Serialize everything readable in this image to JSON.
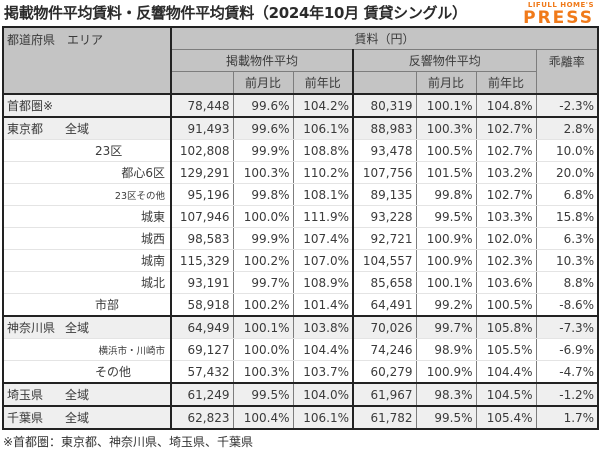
{
  "title": "掲載物件平均賃料・反響物件平均賃料（2024年10月 賃貸シングル）",
  "brand": {
    "small": "LIFULL HOME'S",
    "big": "PRESS",
    "color": "#f07a1a"
  },
  "header": {
    "area": "都道府県　エリア",
    "rent": "賃料（円）",
    "listed_avg": "掲載物件平均",
    "inquiry_avg": "反響物件平均",
    "mom": "前月比",
    "yoy": "前年比",
    "divergence": "乖離率"
  },
  "rows": [
    {
      "pref": "首都圏※",
      "area": "",
      "listed": "78,448",
      "listed_mom": "99.6%",
      "listed_yoy": "104.2%",
      "inq": "80,319",
      "inq_mom": "100.1%",
      "inq_yoy": "104.8%",
      "div": "-2.3%"
    },
    {
      "pref": "東京都",
      "area": "全域",
      "listed": "91,493",
      "listed_mom": "99.6%",
      "listed_yoy": "106.1%",
      "inq": "88,983",
      "inq_mom": "100.3%",
      "inq_yoy": "102.7%",
      "div": "2.8%"
    },
    {
      "pref": "",
      "area": "23区",
      "listed": "102,808",
      "listed_mom": "99.9%",
      "listed_yoy": "108.8%",
      "inq": "93,478",
      "inq_mom": "100.5%",
      "inq_yoy": "102.7%",
      "div": "10.0%"
    },
    {
      "pref": "",
      "area": "都心6区",
      "listed": "129,291",
      "listed_mom": "100.3%",
      "listed_yoy": "110.2%",
      "inq": "107,756",
      "inq_mom": "101.5%",
      "inq_yoy": "103.2%",
      "div": "20.0%"
    },
    {
      "pref": "",
      "area": "23区その他",
      "listed": "95,196",
      "listed_mom": "99.8%",
      "listed_yoy": "108.1%",
      "inq": "89,135",
      "inq_mom": "99.8%",
      "inq_yoy": "102.7%",
      "div": "6.8%"
    },
    {
      "pref": "",
      "area": "城東",
      "listed": "107,946",
      "listed_mom": "100.0%",
      "listed_yoy": "111.9%",
      "inq": "93,228",
      "inq_mom": "99.5%",
      "inq_yoy": "103.3%",
      "div": "15.8%"
    },
    {
      "pref": "",
      "area": "城西",
      "listed": "98,583",
      "listed_mom": "99.9%",
      "listed_yoy": "107.4%",
      "inq": "92,721",
      "inq_mom": "100.9%",
      "inq_yoy": "102.0%",
      "div": "6.3%"
    },
    {
      "pref": "",
      "area": "城南",
      "listed": "115,329",
      "listed_mom": "100.2%",
      "listed_yoy": "107.0%",
      "inq": "104,557",
      "inq_mom": "100.9%",
      "inq_yoy": "102.3%",
      "div": "10.3%"
    },
    {
      "pref": "",
      "area": "城北",
      "listed": "93,191",
      "listed_mom": "99.7%",
      "listed_yoy": "108.9%",
      "inq": "85,658",
      "inq_mom": "100.1%",
      "inq_yoy": "103.6%",
      "div": "8.8%"
    },
    {
      "pref": "",
      "area": "市部",
      "listed": "58,918",
      "listed_mom": "100.2%",
      "listed_yoy": "101.4%",
      "inq": "64,491",
      "inq_mom": "99.2%",
      "inq_yoy": "100.5%",
      "div": "-8.6%"
    },
    {
      "pref": "神奈川県",
      "area": "全域",
      "listed": "64,949",
      "listed_mom": "100.1%",
      "listed_yoy": "103.8%",
      "inq": "70,026",
      "inq_mom": "99.7%",
      "inq_yoy": "105.8%",
      "div": "-7.3%"
    },
    {
      "pref": "",
      "area": "横浜市・川崎市",
      "listed": "69,127",
      "listed_mom": "100.0%",
      "listed_yoy": "104.4%",
      "inq": "74,246",
      "inq_mom": "98.9%",
      "inq_yoy": "105.5%",
      "div": "-6.9%"
    },
    {
      "pref": "",
      "area": "その他",
      "listed": "57,432",
      "listed_mom": "100.3%",
      "listed_yoy": "103.7%",
      "inq": "60,279",
      "inq_mom": "100.9%",
      "inq_yoy": "104.4%",
      "div": "-4.7%"
    },
    {
      "pref": "埼玉県",
      "area": "全域",
      "listed": "61,249",
      "listed_mom": "99.5%",
      "listed_yoy": "104.0%",
      "inq": "61,967",
      "inq_mom": "98.3%",
      "inq_yoy": "104.5%",
      "div": "-1.2%"
    },
    {
      "pref": "千葉県",
      "area": "全域",
      "listed": "62,823",
      "listed_mom": "100.4%",
      "listed_yoy": "106.1%",
      "inq": "61,782",
      "inq_mom": "99.5%",
      "inq_yoy": "105.4%",
      "div": "1.7%"
    }
  ],
  "footnote": "※首都圏：東京都、神奈川県、埼玉県、千葉県"
}
